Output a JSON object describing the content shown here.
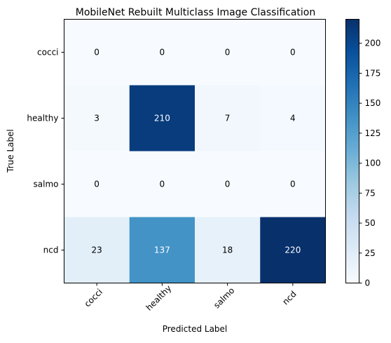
{
  "chart_data": {
    "type": "heatmap",
    "title": "MobileNet Rebuilt Multiclass Image Classification",
    "xlabel": "Predicted Label",
    "ylabel": "True Label",
    "x_categories": [
      "cocci",
      "healthy",
      "salmo",
      "ncd"
    ],
    "y_categories": [
      "cocci",
      "healthy",
      "salmo",
      "ncd"
    ],
    "values": [
      [
        0,
        0,
        0,
        0
      ],
      [
        3,
        210,
        7,
        4
      ],
      [
        0,
        0,
        0,
        0
      ],
      [
        23,
        137,
        18,
        220
      ]
    ],
    "value_range": [
      0,
      220
    ],
    "colormap": "Blues",
    "colorbar_ticks": [
      "0",
      "25",
      "50",
      "75",
      "100",
      "125",
      "150",
      "175",
      "200"
    ]
  }
}
